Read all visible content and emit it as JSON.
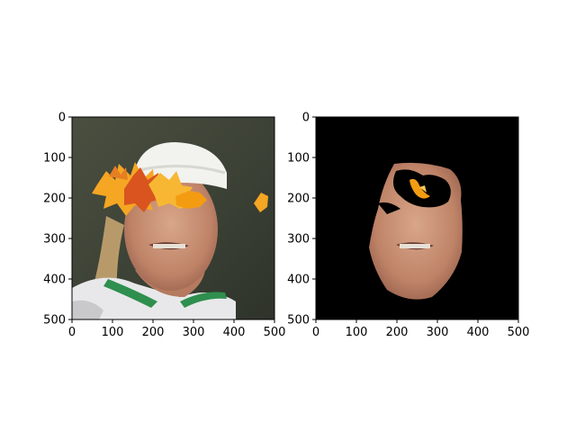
{
  "chart_data": [
    {
      "type": "image",
      "panel": "left",
      "content": "face photo occluded by autumn maple leaves",
      "xlim": [
        0,
        500
      ],
      "ylim": [
        500,
        0
      ],
      "xticks": [
        0,
        100,
        200,
        300,
        400,
        500
      ],
      "yticks": [
        0,
        100,
        200,
        300,
        400,
        500
      ],
      "colors": {
        "background": "#3a3f33",
        "leaf_orange": "#f39c12",
        "leaf_red": "#d35400",
        "cap": "#f2f2ee",
        "skin": "#c9927a"
      }
    },
    {
      "type": "image",
      "panel": "right",
      "content": "segmented face mask on black background",
      "xlim": [
        0,
        500
      ],
      "ylim": [
        500,
        0
      ],
      "xticks": [
        0,
        100,
        200,
        300,
        400,
        500
      ],
      "yticks": [
        0,
        100,
        200,
        300,
        400,
        500
      ],
      "colors": {
        "background": "#000000",
        "skin": "#c9927a",
        "leaf_orange": "#f39c12"
      }
    }
  ]
}
